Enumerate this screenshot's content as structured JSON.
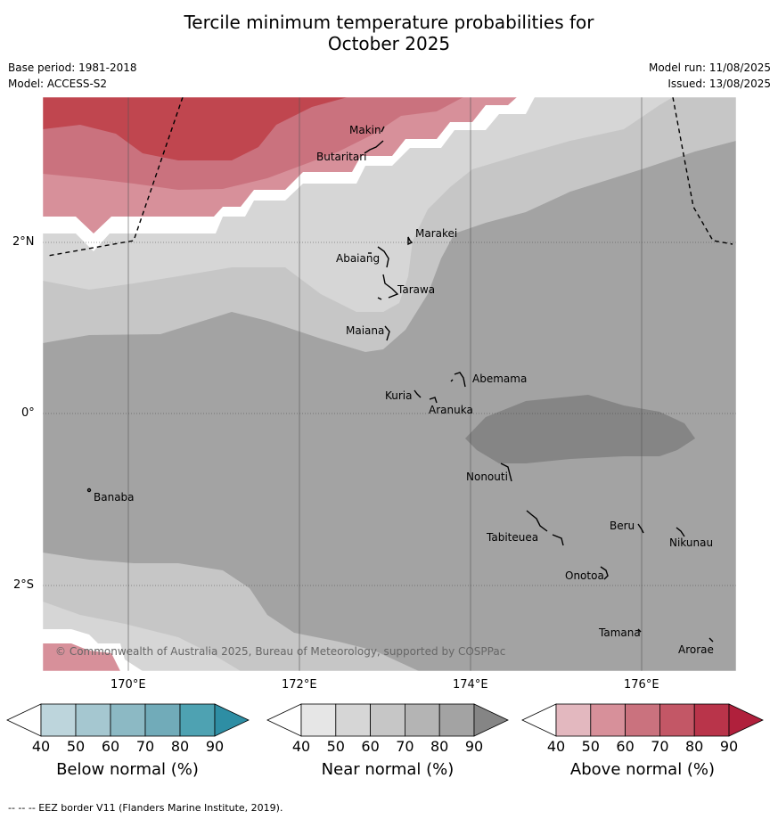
{
  "title_line1": "Tercile minimum temperature probabilities for",
  "title_line2": "October 2025",
  "base_period": "Base period: 1981-2018",
  "model": "Model: ACCESS-S2",
  "model_run": "Model run: 11/08/2025",
  "issued": "Issued: 13/08/2025",
  "lat_ticks": [
    "2°N",
    "0°",
    "2°S"
  ],
  "lon_ticks": [
    "170°E",
    "172°E",
    "174°E",
    "176°E"
  ],
  "islands": [
    "Makin",
    "Butaritari",
    "Marakei",
    "Abaiang",
    "Tarawa",
    "Maiana",
    "Abemama",
    "Kuria",
    "Aranuka",
    "Nonouti",
    "Banaba",
    "Beru",
    "Tabiteuea",
    "Nikunau",
    "Onotoa",
    "Tamana",
    "Arorae"
  ],
  "copyright": "© Commonwealth of Australia 2025, Bureau of Meteorology, supported by COSPPac",
  "colorbars": [
    {
      "title": "Below normal (%)",
      "ticks": [
        "40",
        "50",
        "60",
        "70",
        "80",
        "90"
      ],
      "colors": [
        "#ffffff",
        "#bdd5dc",
        "#a5c7d0",
        "#8cb9c4",
        "#71abb9",
        "#4ea2b2",
        "#2e8ea4"
      ]
    },
    {
      "title": "Near normal (%)",
      "ticks": [
        "40",
        "50",
        "60",
        "70",
        "80",
        "90"
      ],
      "colors": [
        "#ffffff",
        "#e6e6e6",
        "#d6d6d6",
        "#c6c6c6",
        "#b4b4b4",
        "#a3a3a3",
        "#858585"
      ]
    },
    {
      "title": "Above normal (%)",
      "ticks": [
        "40",
        "50",
        "60",
        "70",
        "80",
        "90"
      ],
      "colors": [
        "#ffffff",
        "#e3b8bf",
        "#d7909a",
        "#ca727e",
        "#c35766",
        "#b9344a",
        "#b0203c"
      ]
    }
  ],
  "footnote": "--  --  -- EEZ border V11 (Flanders Marine Institute, 2019)."
}
